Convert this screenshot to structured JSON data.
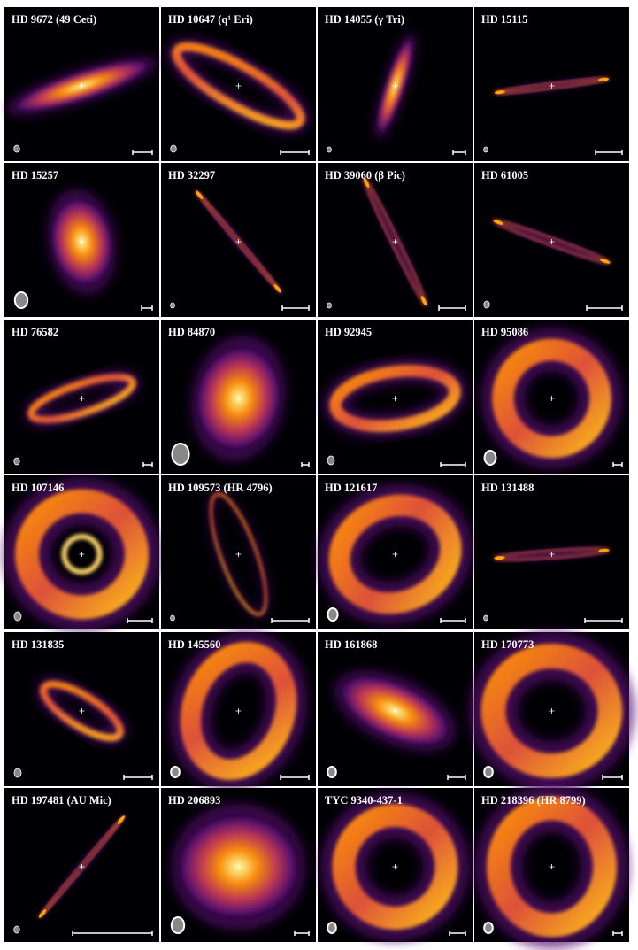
{
  "panels": [
    {
      "label": "HD 9672 (49 Ceti)"
    },
    {
      "label": "HD 10647 (q¹ Eri)"
    },
    {
      "label": "HD 14055 (γ Tri)"
    },
    {
      "label": "HD 15115"
    },
    {
      "label": "HD 15257"
    },
    {
      "label": "HD 32297"
    },
    {
      "label": "HD 39060 (β Pic)"
    },
    {
      "label": "HD 61005"
    },
    {
      "label": "HD 76582"
    },
    {
      "label": "HD 84870"
    },
    {
      "label": "HD 92945"
    },
    {
      "label": "HD 95086"
    },
    {
      "label": "HD 107146"
    },
    {
      "label": "HD 109573 (HR 4796)"
    },
    {
      "label": "HD 121617"
    },
    {
      "label": "HD 131488"
    },
    {
      "label": "HD 131835"
    },
    {
      "label": "HD 145560"
    },
    {
      "label": "HD 161868"
    },
    {
      "label": "HD 170773"
    },
    {
      "label": "HD 197481 (AU Mic)"
    },
    {
      "label": "HD 206893"
    },
    {
      "label": "TYC 9340-437-1"
    },
    {
      "label": "HD 218396 (HR 8799)"
    }
  ]
}
